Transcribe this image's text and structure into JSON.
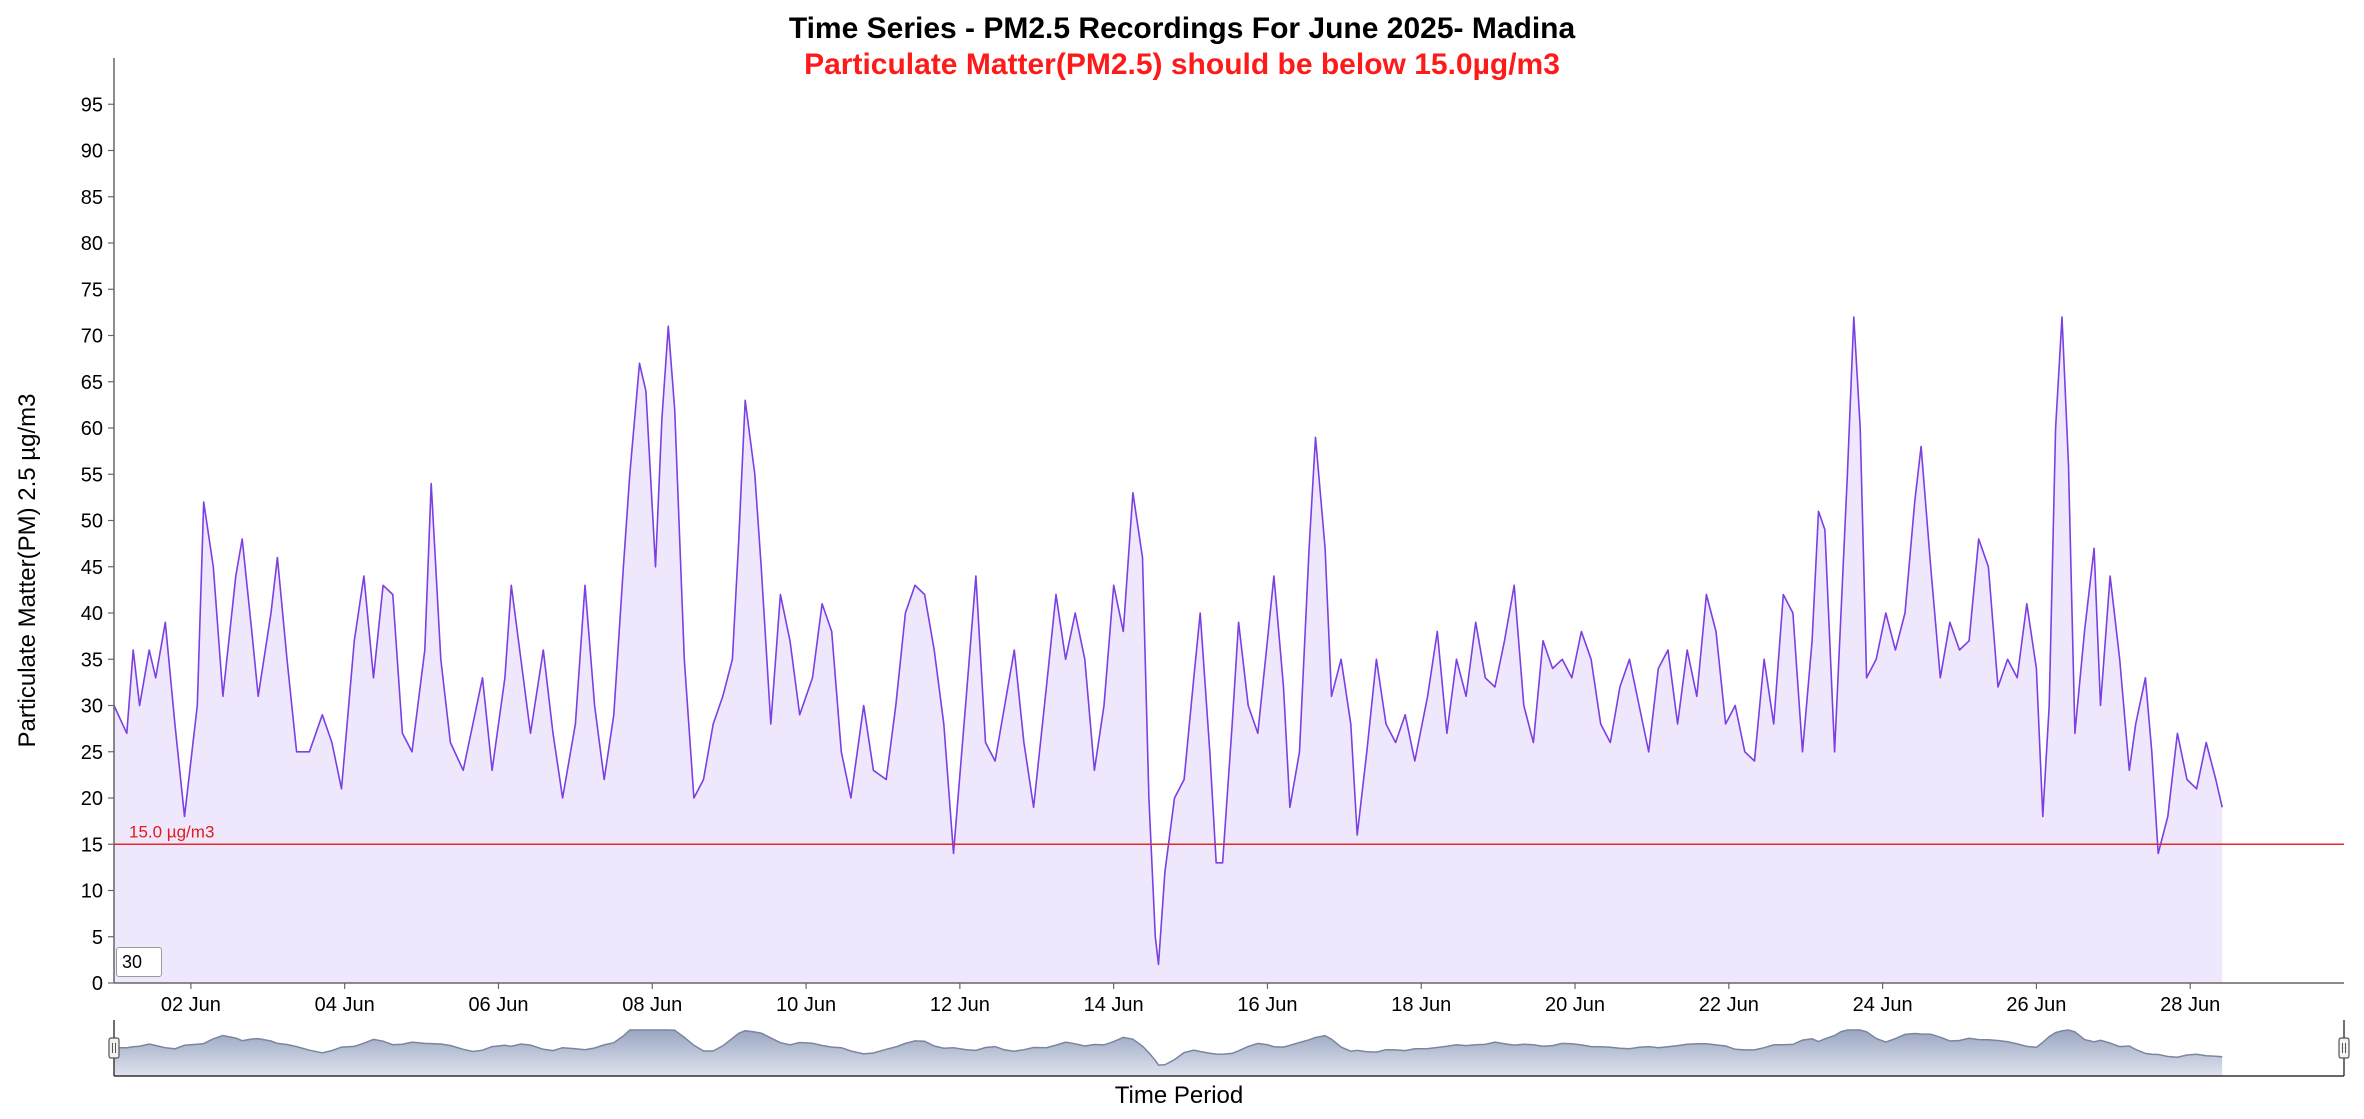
{
  "chart_data": {
    "type": "area",
    "title": "Time Series - PM2.5 Recordings For June 2025- Madina",
    "subtitle": "Particulate Matter(PM2.5) should be below 15.0µg/m3",
    "ylabel": "Particulate Matter(PM) 2.5 µg/m3",
    "xlabel": "Time Period",
    "ylim": [
      0,
      100
    ],
    "xlim": [
      "2025-06-01T00:00",
      "2025-06-30T00:00"
    ],
    "y_ticks": [
      "0",
      "5",
      "10",
      "15",
      "20",
      "25",
      "30",
      "35",
      "40",
      "45",
      "50",
      "55",
      "60",
      "65",
      "70",
      "75",
      "80",
      "85",
      "90",
      "95"
    ],
    "x_ticks": [
      {
        "date": "2025-06-02",
        "label": "02 Jun"
      },
      {
        "date": "2025-06-04",
        "label": "04 Jun"
      },
      {
        "date": "2025-06-06",
        "label": "06 Jun"
      },
      {
        "date": "2025-06-08",
        "label": "08 Jun"
      },
      {
        "date": "2025-06-10",
        "label": "10 Jun"
      },
      {
        "date": "2025-06-12",
        "label": "12 Jun"
      },
      {
        "date": "2025-06-14",
        "label": "14 Jun"
      },
      {
        "date": "2025-06-16",
        "label": "16 Jun"
      },
      {
        "date": "2025-06-18",
        "label": "18 Jun"
      },
      {
        "date": "2025-06-20",
        "label": "20 Jun"
      },
      {
        "date": "2025-06-22",
        "label": "22 Jun"
      },
      {
        "date": "2025-06-24",
        "label": "24 Jun"
      },
      {
        "date": "2025-06-26",
        "label": "26 Jun"
      },
      {
        "date": "2025-06-28",
        "label": "28 Jun"
      }
    ],
    "threshold": {
      "value": 15.0,
      "label": "15.0 µg/m3",
      "color": "#e8272a"
    },
    "grid": false,
    "series_color": "#7b3fe4",
    "fill_color": "#efe8fd",
    "series": [
      {
        "points": [
          [
            "2025-06-01T00:00",
            30
          ],
          [
            "2025-06-01T04:00",
            27
          ],
          [
            "2025-06-01T06:00",
            36
          ],
          [
            "2025-06-01T08:00",
            30
          ],
          [
            "2025-06-01T11:00",
            36
          ],
          [
            "2025-06-01T13:00",
            33
          ],
          [
            "2025-06-01T16:00",
            39
          ],
          [
            "2025-06-01T19:00",
            28
          ],
          [
            "2025-06-01T22:00",
            18
          ],
          [
            "2025-06-02T02:00",
            30
          ],
          [
            "2025-06-02T04:00",
            52
          ],
          [
            "2025-06-02T07:00",
            45
          ],
          [
            "2025-06-02T10:00",
            31
          ],
          [
            "2025-06-02T14:00",
            44
          ],
          [
            "2025-06-02T16:00",
            48
          ],
          [
            "2025-06-02T19:00",
            38
          ],
          [
            "2025-06-02T21:00",
            31
          ],
          [
            "2025-06-03T01:00",
            40
          ],
          [
            "2025-06-03T03:00",
            46
          ],
          [
            "2025-06-03T06:00",
            35
          ],
          [
            "2025-06-03T09:00",
            25
          ],
          [
            "2025-06-03T13:00",
            25
          ],
          [
            "2025-06-03T17:00",
            29
          ],
          [
            "2025-06-03T20:00",
            26
          ],
          [
            "2025-06-03T23:00",
            21
          ],
          [
            "2025-06-04T03:00",
            37
          ],
          [
            "2025-06-04T06:00",
            44
          ],
          [
            "2025-06-04T09:00",
            33
          ],
          [
            "2025-06-04T12:00",
            43
          ],
          [
            "2025-06-04T15:00",
            42
          ],
          [
            "2025-06-04T18:00",
            27
          ],
          [
            "2025-06-04T21:00",
            25
          ],
          [
            "2025-06-05T01:00",
            36
          ],
          [
            "2025-06-05T03:00",
            54
          ],
          [
            "2025-06-05T06:00",
            35
          ],
          [
            "2025-06-05T09:00",
            26
          ],
          [
            "2025-06-05T13:00",
            23
          ],
          [
            "2025-06-05T16:00",
            28
          ],
          [
            "2025-06-05T19:00",
            33
          ],
          [
            "2025-06-05T22:00",
            23
          ],
          [
            "2025-06-06T02:00",
            33
          ],
          [
            "2025-06-06T04:00",
            43
          ],
          [
            "2025-06-06T07:00",
            35
          ],
          [
            "2025-06-06T10:00",
            27
          ],
          [
            "2025-06-06T14:00",
            36
          ],
          [
            "2025-06-06T17:00",
            27
          ],
          [
            "2025-06-06T20:00",
            20
          ],
          [
            "2025-06-07T00:00",
            28
          ],
          [
            "2025-06-07T03:00",
            43
          ],
          [
            "2025-06-07T06:00",
            30
          ],
          [
            "2025-06-07T09:00",
            22
          ],
          [
            "2025-06-07T12:00",
            29
          ],
          [
            "2025-06-07T15:00",
            45
          ],
          [
            "2025-06-07T17:00",
            55
          ],
          [
            "2025-06-07T20:00",
            67
          ],
          [
            "2025-06-07T22:00",
            64
          ],
          [
            "2025-06-08T01:00",
            45
          ],
          [
            "2025-06-08T03:00",
            61
          ],
          [
            "2025-06-08T05:00",
            71
          ],
          [
            "2025-06-08T07:00",
            62
          ],
          [
            "2025-06-08T10:00",
            35
          ],
          [
            "2025-06-08T13:00",
            20
          ],
          [
            "2025-06-08T16:00",
            22
          ],
          [
            "2025-06-08T19:00",
            28
          ],
          [
            "2025-06-08T22:00",
            31
          ],
          [
            "2025-06-09T01:00",
            35
          ],
          [
            "2025-06-09T03:00",
            48
          ],
          [
            "2025-06-09T05:00",
            63
          ],
          [
            "2025-06-09T08:00",
            55
          ],
          [
            "2025-06-09T10:00",
            45
          ],
          [
            "2025-06-09T13:00",
            28
          ],
          [
            "2025-06-09T16:00",
            42
          ],
          [
            "2025-06-09T19:00",
            37
          ],
          [
            "2025-06-09T22:00",
            29
          ],
          [
            "2025-06-10T02:00",
            33
          ],
          [
            "2025-06-10T05:00",
            41
          ],
          [
            "2025-06-10T08:00",
            38
          ],
          [
            "2025-06-10T11:00",
            25
          ],
          [
            "2025-06-10T14:00",
            20
          ],
          [
            "2025-06-10T18:00",
            30
          ],
          [
            "2025-06-10T21:00",
            23
          ],
          [
            "2025-06-11T01:00",
            22
          ],
          [
            "2025-06-11T04:00",
            30
          ],
          [
            "2025-06-11T07:00",
            40
          ],
          [
            "2025-06-11T10:00",
            43
          ],
          [
            "2025-06-11T13:00",
            42
          ],
          [
            "2025-06-11T16:00",
            36
          ],
          [
            "2025-06-11T19:00",
            28
          ],
          [
            "2025-06-11T22:00",
            14
          ],
          [
            "2025-06-12T02:00",
            31
          ],
          [
            "2025-06-12T05:00",
            44
          ],
          [
            "2025-06-12T08:00",
            26
          ],
          [
            "2025-06-12T11:00",
            24
          ],
          [
            "2025-06-12T14:00",
            30
          ],
          [
            "2025-06-12T17:00",
            36
          ],
          [
            "2025-06-12T20:00",
            26
          ],
          [
            "2025-06-12T23:00",
            19
          ],
          [
            "2025-06-13T03:00",
            32
          ],
          [
            "2025-06-13T06:00",
            42
          ],
          [
            "2025-06-13T09:00",
            35
          ],
          [
            "2025-06-13T12:00",
            40
          ],
          [
            "2025-06-13T15:00",
            35
          ],
          [
            "2025-06-13T18:00",
            23
          ],
          [
            "2025-06-13T21:00",
            30
          ],
          [
            "2025-06-14T00:00",
            43
          ],
          [
            "2025-06-14T03:00",
            38
          ],
          [
            "2025-06-14T06:00",
            53
          ],
          [
            "2025-06-14T09:00",
            46
          ],
          [
            "2025-06-14T11:00",
            20
          ],
          [
            "2025-06-14T13:00",
            5
          ],
          [
            "2025-06-14T14:00",
            2
          ],
          [
            "2025-06-14T16:00",
            12
          ],
          [
            "2025-06-14T19:00",
            20
          ],
          [
            "2025-06-14T22:00",
            22
          ],
          [
            "2025-06-15T01:00",
            33
          ],
          [
            "2025-06-15T03:00",
            40
          ],
          [
            "2025-06-15T06:00",
            25
          ],
          [
            "2025-06-15T08:00",
            13
          ],
          [
            "2025-06-15T10:00",
            13
          ],
          [
            "2025-06-15T13:00",
            28
          ],
          [
            "2025-06-15T15:00",
            39
          ],
          [
            "2025-06-15T18:00",
            30
          ],
          [
            "2025-06-15T21:00",
            27
          ],
          [
            "2025-06-16T00:00",
            37
          ],
          [
            "2025-06-16T02:00",
            44
          ],
          [
            "2025-06-16T05:00",
            32
          ],
          [
            "2025-06-16T07:00",
            19
          ],
          [
            "2025-06-16T10:00",
            25
          ],
          [
            "2025-06-16T13:00",
            47
          ],
          [
            "2025-06-16T15:00",
            59
          ],
          [
            "2025-06-16T18:00",
            47
          ],
          [
            "2025-06-16T20:00",
            31
          ],
          [
            "2025-06-16T23:00",
            35
          ],
          [
            "2025-06-17T02:00",
            28
          ],
          [
            "2025-06-17T04:00",
            16
          ],
          [
            "2025-06-17T07:00",
            25
          ],
          [
            "2025-06-17T10:00",
            35
          ],
          [
            "2025-06-17T13:00",
            28
          ],
          [
            "2025-06-17T16:00",
            26
          ],
          [
            "2025-06-17T19:00",
            29
          ],
          [
            "2025-06-17T22:00",
            24
          ],
          [
            "2025-06-18T02:00",
            31
          ],
          [
            "2025-06-18T05:00",
            38
          ],
          [
            "2025-06-18T08:00",
            27
          ],
          [
            "2025-06-18T11:00",
            35
          ],
          [
            "2025-06-18T14:00",
            31
          ],
          [
            "2025-06-18T17:00",
            39
          ],
          [
            "2025-06-18T20:00",
            33
          ],
          [
            "2025-06-18T23:00",
            32
          ],
          [
            "2025-06-19T02:00",
            37
          ],
          [
            "2025-06-19T05:00",
            43
          ],
          [
            "2025-06-19T08:00",
            30
          ],
          [
            "2025-06-19T11:00",
            26
          ],
          [
            "2025-06-19T14:00",
            37
          ],
          [
            "2025-06-19T17:00",
            34
          ],
          [
            "2025-06-19T20:00",
            35
          ],
          [
            "2025-06-19T23:00",
            33
          ],
          [
            "2025-06-20T02:00",
            38
          ],
          [
            "2025-06-20T05:00",
            35
          ],
          [
            "2025-06-20T08:00",
            28
          ],
          [
            "2025-06-20T11:00",
            26
          ],
          [
            "2025-06-20T14:00",
            32
          ],
          [
            "2025-06-20T17:00",
            35
          ],
          [
            "2025-06-20T20:00",
            30
          ],
          [
            "2025-06-20T23:00",
            25
          ],
          [
            "2025-06-21T02:00",
            34
          ],
          [
            "2025-06-21T05:00",
            36
          ],
          [
            "2025-06-21T08:00",
            28
          ],
          [
            "2025-06-21T11:00",
            36
          ],
          [
            "2025-06-21T14:00",
            31
          ],
          [
            "2025-06-21T17:00",
            42
          ],
          [
            "2025-06-21T20:00",
            38
          ],
          [
            "2025-06-21T23:00",
            28
          ],
          [
            "2025-06-22T02:00",
            30
          ],
          [
            "2025-06-22T05:00",
            25
          ],
          [
            "2025-06-22T08:00",
            24
          ],
          [
            "2025-06-22T11:00",
            35
          ],
          [
            "2025-06-22T14:00",
            28
          ],
          [
            "2025-06-22T17:00",
            42
          ],
          [
            "2025-06-22T20:00",
            40
          ],
          [
            "2025-06-22T23:00",
            25
          ],
          [
            "2025-06-23T02:00",
            37
          ],
          [
            "2025-06-23T04:00",
            51
          ],
          [
            "2025-06-23T06:00",
            49
          ],
          [
            "2025-06-23T09:00",
            25
          ],
          [
            "2025-06-23T11:00",
            40
          ],
          [
            "2025-06-23T13:00",
            55
          ],
          [
            "2025-06-23T15:00",
            72
          ],
          [
            "2025-06-23T17:00",
            60
          ],
          [
            "2025-06-23T19:00",
            33
          ],
          [
            "2025-06-23T22:00",
            35
          ],
          [
            "2025-06-24T01:00",
            40
          ],
          [
            "2025-06-24T04:00",
            36
          ],
          [
            "2025-06-24T07:00",
            40
          ],
          [
            "2025-06-24T10:00",
            52
          ],
          [
            "2025-06-24T12:00",
            58
          ],
          [
            "2025-06-24T15:00",
            45
          ],
          [
            "2025-06-24T18:00",
            33
          ],
          [
            "2025-06-24T21:00",
            39
          ],
          [
            "2025-06-25T00:00",
            36
          ],
          [
            "2025-06-25T03:00",
            37
          ],
          [
            "2025-06-25T06:00",
            48
          ],
          [
            "2025-06-25T09:00",
            45
          ],
          [
            "2025-06-25T12:00",
            32
          ],
          [
            "2025-06-25T15:00",
            35
          ],
          [
            "2025-06-25T18:00",
            33
          ],
          [
            "2025-06-25T21:00",
            41
          ],
          [
            "2025-06-26T00:00",
            34
          ],
          [
            "2025-06-26T02:00",
            18
          ],
          [
            "2025-06-26T04:00",
            30
          ],
          [
            "2025-06-26T06:00",
            60
          ],
          [
            "2025-06-26T08:00",
            72
          ],
          [
            "2025-06-26T10:00",
            56
          ],
          [
            "2025-06-26T12:00",
            27
          ],
          [
            "2025-06-26T15:00",
            38
          ],
          [
            "2025-06-26T18:00",
            47
          ],
          [
            "2025-06-26T20:00",
            30
          ],
          [
            "2025-06-26T23:00",
            44
          ],
          [
            "2025-06-27T02:00",
            35
          ],
          [
            "2025-06-27T05:00",
            23
          ],
          [
            "2025-06-27T07:00",
            28
          ],
          [
            "2025-06-27T10:00",
            33
          ],
          [
            "2025-06-27T12:00",
            25
          ],
          [
            "2025-06-27T14:00",
            14
          ],
          [
            "2025-06-27T17:00",
            18
          ],
          [
            "2025-06-27T20:00",
            27
          ],
          [
            "2025-06-27T23:00",
            22
          ],
          [
            "2025-06-28T02:00",
            21
          ],
          [
            "2025-06-28T05:00",
            26
          ],
          [
            "2025-06-28T08:00",
            22
          ],
          [
            "2025-06-28T10:00",
            19
          ]
        ]
      }
    ],
    "navigator": {
      "axis": "Time Period"
    }
  },
  "controls": {
    "rolling_window_value": "30"
  }
}
